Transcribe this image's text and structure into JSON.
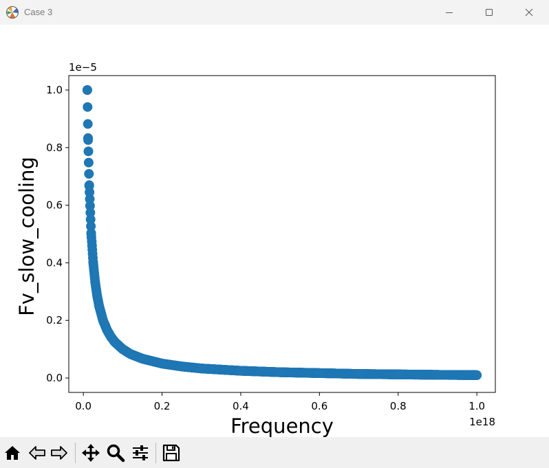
{
  "window": {
    "title": "Case 3"
  },
  "toolbar": {
    "buttons": [
      {
        "name": "home",
        "icon": "home-icon"
      },
      {
        "name": "back",
        "icon": "arrow-left-icon"
      },
      {
        "name": "forward",
        "icon": "arrow-right-icon"
      },
      {
        "name": "pan",
        "icon": "move-icon"
      },
      {
        "name": "zoom",
        "icon": "magnifier-icon"
      },
      {
        "name": "configure-subplots",
        "icon": "sliders-icon"
      },
      {
        "name": "save",
        "icon": "floppy-disk-icon"
      }
    ]
  },
  "chart_data": {
    "type": "scatter",
    "title": "",
    "xlabel": "Frequency",
    "ylabel": "Fv_slow_cooling",
    "x_offset_text": "1e18",
    "y_offset_text": "1e−5",
    "xlim": [
      -0.037,
      1.047
    ],
    "ylim": [
      -0.05,
      1.05
    ],
    "x_ticks": [
      0.0,
      0.2,
      0.4,
      0.6,
      0.8,
      1.0
    ],
    "x_tick_labels": [
      "0.0",
      "0.2",
      "0.4",
      "0.6",
      "0.8",
      "1.0"
    ],
    "y_ticks": [
      0.0,
      0.2,
      0.4,
      0.6,
      0.8,
      1.0
    ],
    "y_tick_labels": [
      "0.0",
      "0.2",
      "0.4",
      "0.6",
      "0.8",
      "1.0"
    ],
    "grid": false,
    "marker_color": "#1f77b4",
    "series": [
      {
        "x": [
          0.01,
          0.012,
          0.015,
          0.02,
          0.025,
          0.03,
          0.035,
          0.04,
          0.05,
          0.06,
          0.07,
          0.08,
          0.1,
          0.12,
          0.15,
          0.2,
          0.25,
          0.3,
          0.4,
          0.5,
          0.6,
          0.7,
          0.8,
          0.9,
          1.0
        ],
        "y": [
          1.0,
          0.833,
          0.667,
          0.5,
          0.4,
          0.333,
          0.286,
          0.25,
          0.2,
          0.167,
          0.143,
          0.125,
          0.1,
          0.083,
          0.067,
          0.05,
          0.04,
          0.033,
          0.025,
          0.02,
          0.017,
          0.014,
          0.0125,
          0.011,
          0.01
        ]
      }
    ]
  }
}
